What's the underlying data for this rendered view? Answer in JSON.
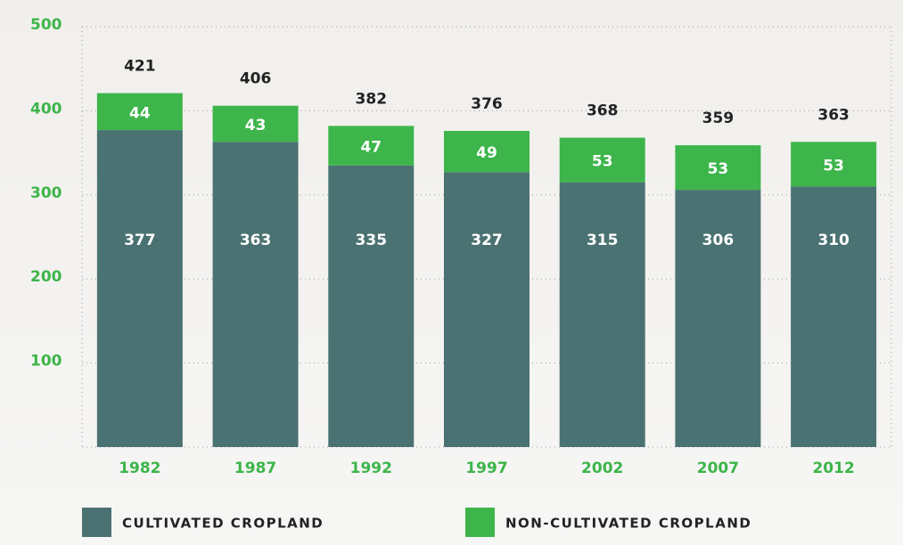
{
  "chart_data": {
    "type": "stacked_bar",
    "categories": [
      "1982",
      "1987",
      "1992",
      "1997",
      "2002",
      "2007",
      "2012"
    ],
    "series": [
      {
        "name": "CULTIVATED CROPLAND",
        "color": "#4b7272",
        "values": [
          377,
          363,
          335,
          327,
          315,
          306,
          310
        ]
      },
      {
        "name": "NON-CULTIVATED CROPLAND",
        "color": "#3db54a",
        "values": [
          44,
          43,
          47,
          49,
          53,
          53,
          53
        ]
      }
    ],
    "totals": [
      421,
      406,
      382,
      376,
      368,
      359,
      363
    ],
    "ylim": [
      0,
      500
    ],
    "yticks": [
      100,
      200,
      300,
      400,
      500
    ],
    "grid": true
  }
}
